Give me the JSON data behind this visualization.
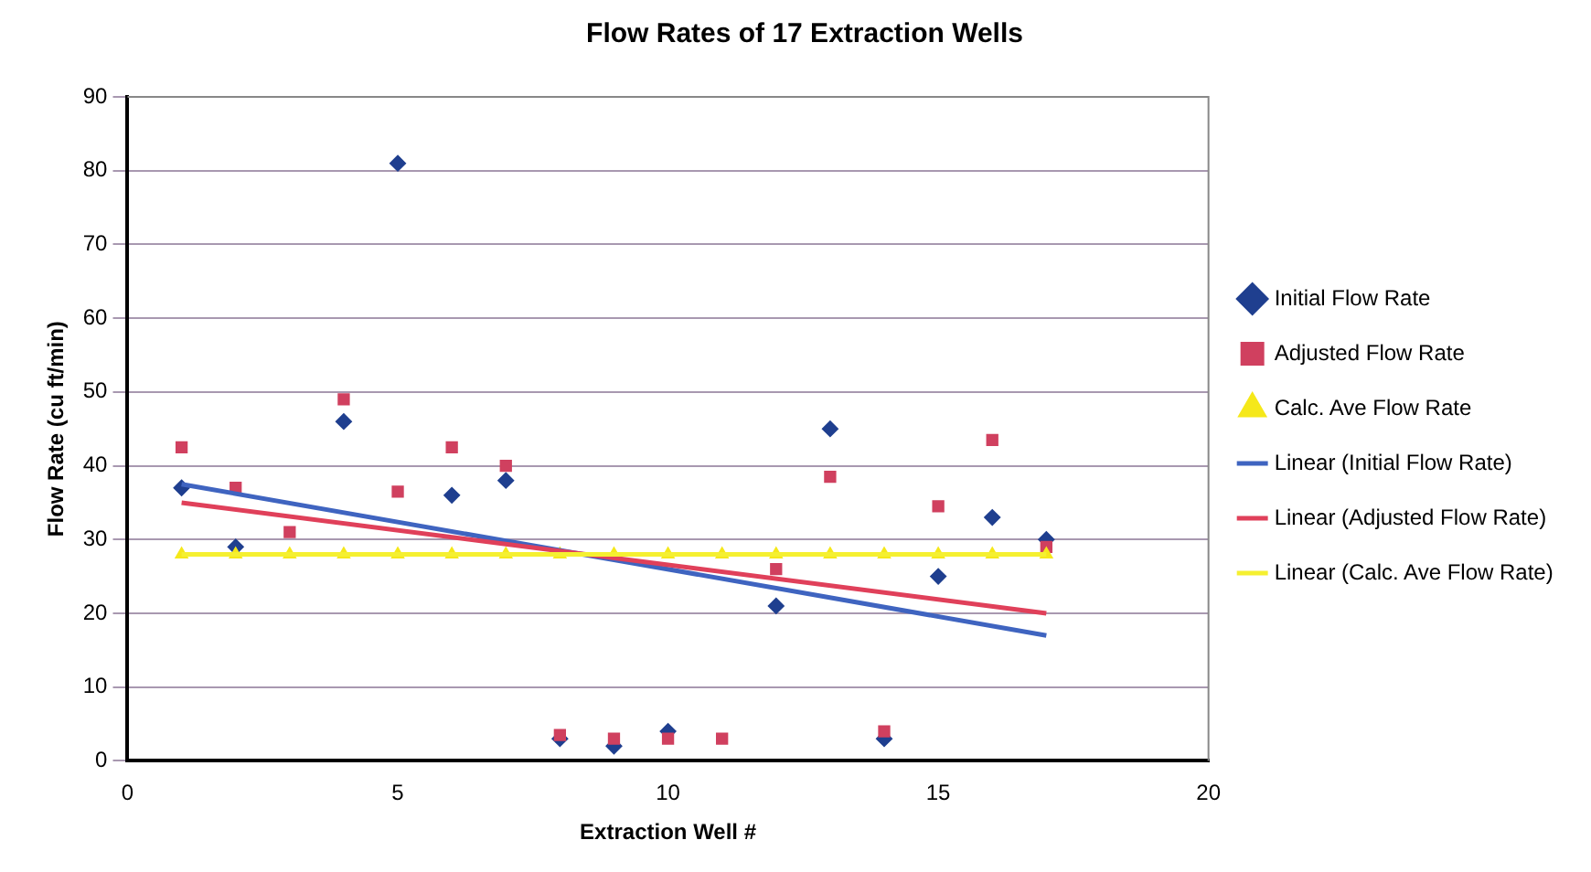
{
  "chart_data": {
    "type": "scatter",
    "title": "Flow Rates of 17 Extraction Wells",
    "xlabel": "Extraction Well #",
    "ylabel": "Flow Rate (cu ft/min)",
    "x": [
      1,
      2,
      3,
      4,
      5,
      6,
      7,
      8,
      9,
      10,
      11,
      12,
      13,
      14,
      15,
      16,
      17
    ],
    "series": [
      {
        "name": "Initial Flow Rate",
        "color": "#1f3f8f",
        "marker": "diamond",
        "values": [
          37,
          29,
          null,
          46,
          81,
          36,
          38,
          3,
          2,
          4,
          null,
          21,
          45,
          3,
          25,
          33,
          30
        ]
      },
      {
        "name": "Adjusted Flow Rate",
        "color": "#d0405f",
        "marker": "square",
        "values": [
          42.5,
          37,
          31,
          49,
          36.5,
          42.5,
          40,
          3.5,
          3,
          3,
          3,
          26,
          38.5,
          4,
          34.5,
          43.5,
          29
        ]
      },
      {
        "name": "Calc. Ave Flow Rate",
        "color": "#f5e81a",
        "marker": "triangle",
        "values": [
          28,
          28,
          28,
          28,
          28,
          28,
          28,
          28,
          28,
          28,
          28,
          28,
          28,
          28,
          28,
          28,
          28
        ]
      },
      {
        "name": "Linear (Initial Flow Rate)",
        "type": "line",
        "color": "#3f64c0",
        "values": [
          37.5,
          null,
          null,
          null,
          null,
          null,
          null,
          null,
          null,
          null,
          null,
          null,
          null,
          null,
          null,
          null,
          17
        ]
      },
      {
        "name": "Linear (Adjusted Flow Rate)",
        "type": "line",
        "color": "#e0405a",
        "values": [
          35,
          null,
          null,
          null,
          null,
          null,
          null,
          null,
          null,
          null,
          null,
          null,
          null,
          null,
          null,
          null,
          20
        ]
      },
      {
        "name": "Linear (Calc. Ave Flow Rate)",
        "type": "line",
        "color": "#f5f030",
        "values": [
          28,
          null,
          null,
          null,
          null,
          null,
          null,
          null,
          null,
          null,
          null,
          null,
          null,
          null,
          null,
          null,
          28
        ]
      }
    ],
    "xlim": [
      0,
      20
    ],
    "xticks": [
      0,
      5,
      10,
      15,
      20
    ],
    "ylim": [
      0,
      90
    ],
    "yticks": [
      0,
      10,
      20,
      30,
      40,
      50,
      60,
      70,
      80,
      90
    ],
    "grid": "y",
    "legend": "right"
  }
}
